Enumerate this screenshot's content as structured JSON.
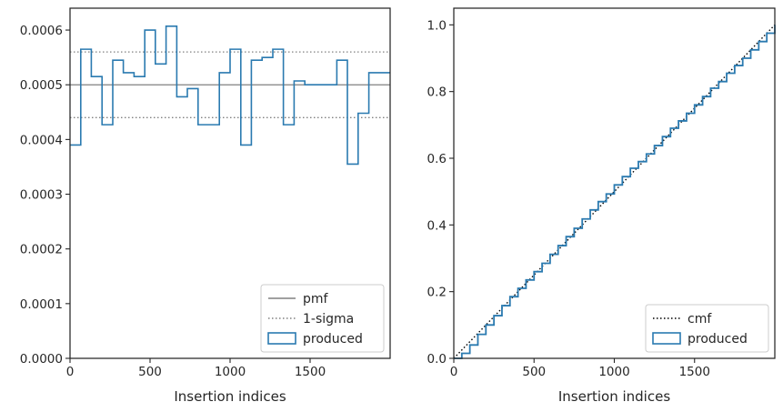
{
  "chart_data": [
    {
      "type": "line",
      "xlabel": "Insertion indices",
      "ylabel": "",
      "xlim": [
        0,
        2000
      ],
      "ylim": [
        0,
        0.00064
      ],
      "xticks": [
        0,
        500,
        1000,
        1500
      ],
      "xtick_labels": [
        "0",
        "500",
        "1000",
        "1500"
      ],
      "yticks": [
        0,
        0.0001,
        0.0002,
        0.0003,
        0.0004,
        0.0005,
        0.0006
      ],
      "ytick_labels": [
        "0.0000",
        "0.0001",
        "0.0002",
        "0.0003",
        "0.0004",
        "0.0005",
        "0.0006"
      ],
      "grid": false,
      "legend_position": "lower-right",
      "series": [
        {
          "name": "pmf",
          "kind": "hline",
          "y": 0.0005,
          "color": "#808080",
          "style": "solid"
        },
        {
          "name": "1-sigma",
          "kind": "hlines",
          "y": [
            0.00044,
            0.00056
          ],
          "color": "#808080",
          "style": "dotted"
        },
        {
          "name": "produced",
          "kind": "step-histogram",
          "color": "#2a7ab0",
          "bin_edges": [
            0,
            67,
            133,
            200,
            267,
            333,
            400,
            467,
            533,
            600,
            667,
            733,
            800,
            867,
            933,
            1000,
            1067,
            1133,
            1200,
            1267,
            1333,
            1400,
            1467,
            1533,
            1600,
            1667,
            1733,
            1800,
            1867,
            1933,
            2000
          ],
          "values": [
            0.00039,
            0.000565,
            0.000515,
            0.000427,
            0.000545,
            0.000522,
            0.000515,
            0.0006,
            0.000538,
            0.000607,
            0.000478,
            0.000493,
            0.000427,
            0.000427,
            0.000522,
            0.000565,
            0.00039,
            0.000545,
            0.00055,
            0.000565,
            0.000427,
            0.000507,
            0.0005,
            0.0005,
            0.0005,
            0.000545,
            0.000355,
            0.000448,
            0.000522,
            0.000522
          ]
        }
      ]
    },
    {
      "type": "line",
      "xlabel": "Insertion indices",
      "ylabel": "",
      "xlim": [
        0,
        2000
      ],
      "ylim": [
        0,
        1.05
      ],
      "xticks": [
        0,
        500,
        1000,
        1500
      ],
      "xtick_labels": [
        "0",
        "500",
        "1000",
        "1500"
      ],
      "yticks": [
        0,
        0.2,
        0.4,
        0.6,
        0.8,
        1.0
      ],
      "ytick_labels": [
        "0.0",
        "0.2",
        "0.4",
        "0.6",
        "0.8",
        "1.0"
      ],
      "grid": false,
      "legend_position": "lower-right",
      "series": [
        {
          "name": "cmf",
          "kind": "line",
          "x": [
            0,
            2000
          ],
          "y": [
            0,
            1.0
          ],
          "color": "#000000",
          "style": "dotted"
        },
        {
          "name": "produced",
          "kind": "step-line",
          "color": "#2a7ab0",
          "x": [
            0,
            50,
            100,
            150,
            200,
            250,
            300,
            350,
            400,
            450,
            500,
            550,
            600,
            650,
            700,
            750,
            800,
            850,
            900,
            950,
            1000,
            1050,
            1100,
            1150,
            1200,
            1250,
            1300,
            1350,
            1400,
            1450,
            1500,
            1550,
            1600,
            1650,
            1700,
            1750,
            1800,
            1850,
            1900,
            1950,
            2000
          ],
          "y": [
            0,
            0.015,
            0.04,
            0.072,
            0.1,
            0.128,
            0.158,
            0.185,
            0.21,
            0.235,
            0.26,
            0.285,
            0.312,
            0.338,
            0.365,
            0.39,
            0.418,
            0.445,
            0.47,
            0.493,
            0.52,
            0.545,
            0.57,
            0.59,
            0.613,
            0.638,
            0.665,
            0.69,
            0.712,
            0.735,
            0.76,
            0.785,
            0.81,
            0.83,
            0.855,
            0.878,
            0.9,
            0.925,
            0.95,
            0.975,
            1.0
          ]
        }
      ]
    }
  ]
}
